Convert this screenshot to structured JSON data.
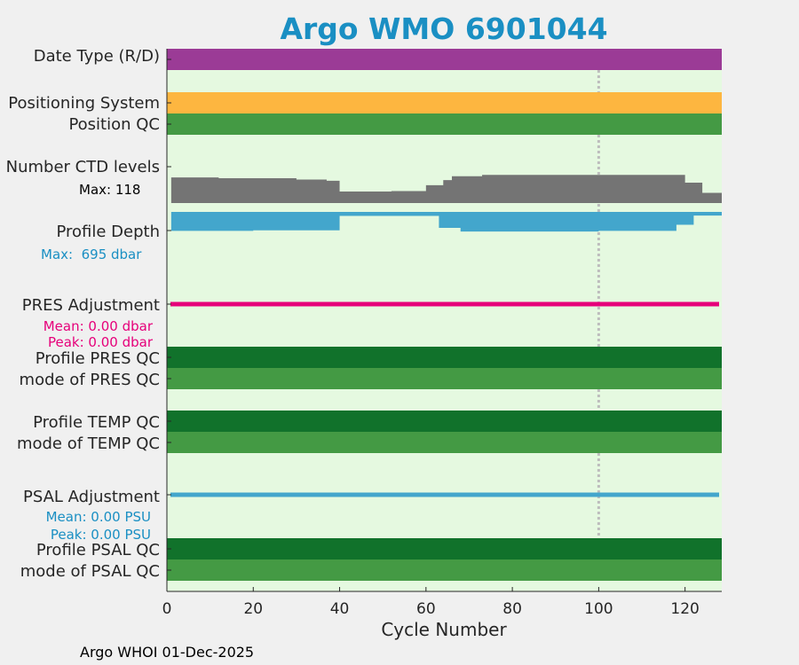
{
  "colors": {
    "title": "#1a8fc3",
    "plot_bg": "#e5f9e0",
    "figure_bg": "#f0f0f0",
    "date_type": "#9b3b96",
    "positioning": "#fdb640",
    "qc_good_mode": "#449a44",
    "qc_good_profile": "#11722b",
    "ctd_levels": "#747474",
    "profile_depth": "#43a6cc",
    "pres_adjustment": "#e6007a",
    "psal_adjustment": "#43a6cc",
    "psal_note": "#1a8fc3",
    "depth_note": "#1a8fc3",
    "gridline": "#bdbdbd"
  },
  "chart_data": {
    "type": "timeline",
    "title": "Argo WMO 6901044",
    "xlabel": "Cycle Number",
    "xlim": [
      0,
      128.5
    ],
    "xticks": [
      0,
      20,
      40,
      60,
      80,
      100,
      120
    ],
    "cycle_range": [
      1,
      128
    ],
    "reference_line_x": 100,
    "rows": [
      {
        "label": "Date Type (R/D)",
        "kind": "bar",
        "color_key": "date_type"
      },
      {
        "label": "Positioning System",
        "kind": "bar",
        "color_key": "positioning"
      },
      {
        "label": "Position QC",
        "kind": "bar",
        "color_key": "qc_good_mode"
      },
      {
        "label": "Number CTD levels",
        "kind": "ctd_levels",
        "color_key": "ctd_levels",
        "note": "Max: 118"
      },
      {
        "label": "Profile Depth",
        "kind": "depth",
        "color_key": "profile_depth",
        "note": "Max:  695 dbar"
      },
      {
        "label": "PRES Adjustment",
        "kind": "line",
        "color_key": "pres_adjustment",
        "notes": [
          "Mean: 0.00 dbar",
          "Peak: 0.00 dbar"
        ]
      },
      {
        "label": "Profile PRES QC",
        "kind": "bar",
        "color_key": "qc_good_profile"
      },
      {
        "label": "mode of PRES QC",
        "kind": "bar",
        "color_key": "qc_good_mode"
      },
      {
        "label": "Profile TEMP QC",
        "kind": "bar",
        "color_key": "qc_good_profile"
      },
      {
        "label": "mode of TEMP QC",
        "kind": "bar",
        "color_key": "qc_good_mode"
      },
      {
        "label": "PSAL Adjustment",
        "kind": "line",
        "color_key": "psal_adjustment",
        "notes": [
          "Mean: 0.00 PSU",
          "Peak: 0.00 PSU"
        ]
      },
      {
        "label": "Profile PSAL QC",
        "kind": "bar",
        "color_key": "qc_good_profile"
      },
      {
        "label": "mode of PSAL QC",
        "kind": "bar",
        "color_key": "qc_good_mode"
      }
    ],
    "ctd_levels_max": 118,
    "ctd_levels_segments": [
      {
        "x": [
          1,
          12
        ],
        "value": 100
      },
      {
        "x": [
          12,
          30
        ],
        "value": 97
      },
      {
        "x": [
          30,
          37
        ],
        "value": 92
      },
      {
        "x": [
          37,
          40
        ],
        "value": 87
      },
      {
        "x": [
          40,
          52
        ],
        "value": 45
      },
      {
        "x": [
          52,
          60
        ],
        "value": 47
      },
      {
        "x": [
          60,
          64
        ],
        "value": 70
      },
      {
        "x": [
          64,
          66
        ],
        "value": 90
      },
      {
        "x": [
          66,
          73
        ],
        "value": 105
      },
      {
        "x": [
          73,
          120
        ],
        "value": 110
      },
      {
        "x": [
          120,
          124
        ],
        "value": 80
      },
      {
        "x": [
          124,
          128.5
        ],
        "value": 40
      }
    ],
    "profile_depth_max": 695,
    "profile_depth_segments": [
      {
        "x": [
          1,
          20
        ],
        "value": 620
      },
      {
        "x": [
          20,
          40
        ],
        "value": 600
      },
      {
        "x": [
          40,
          63
        ],
        "value": 130
      },
      {
        "x": [
          63,
          68
        ],
        "value": 520
      },
      {
        "x": [
          68,
          100
        ],
        "value": 640
      },
      {
        "x": [
          100,
          118
        ],
        "value": 620
      },
      {
        "x": [
          118,
          122
        ],
        "value": 420
      },
      {
        "x": [
          122,
          128.5
        ],
        "value": 120
      }
    ],
    "pres_adjustment": {
      "mean": 0.0,
      "peak": 0.0,
      "unit": "dbar"
    },
    "psal_adjustment": {
      "mean": 0.0,
      "peak": 0.0,
      "unit": "PSU"
    }
  },
  "footer": "Argo WHOI 01-Dec-2025"
}
